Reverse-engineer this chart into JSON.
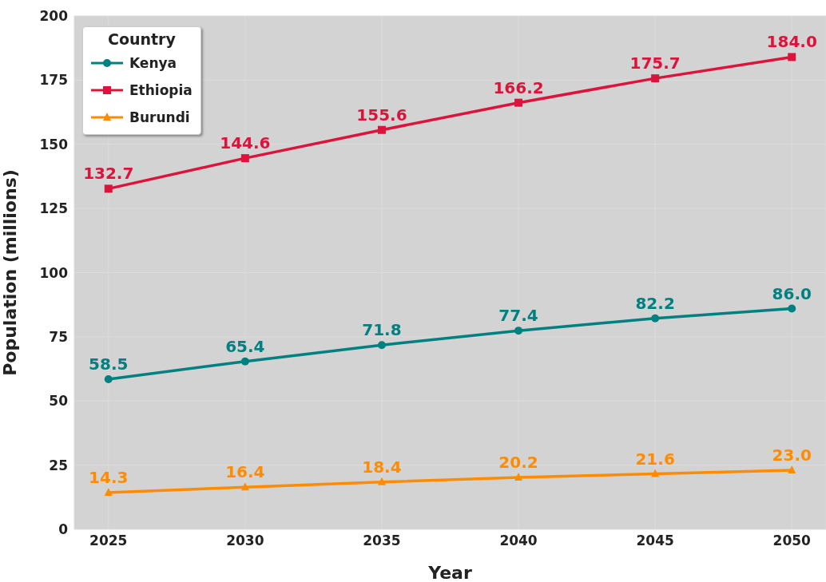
{
  "chart_data": {
    "type": "line",
    "xlabel": "Year",
    "ylabel": "Population (millions)",
    "legend_title": "Country",
    "x": [
      2025,
      2030,
      2035,
      2040,
      2045,
      2050
    ],
    "series": [
      {
        "name": "Kenya",
        "color": "#008080",
        "marker": "circle",
        "values": [
          58.5,
          65.4,
          71.8,
          77.4,
          82.2,
          86.0
        ],
        "value_labels": [
          "58.5",
          "65.4",
          "71.8",
          "77.4",
          "82.2",
          "86.0"
        ]
      },
      {
        "name": "Ethiopia",
        "color": "#dc143c",
        "marker": "square",
        "values": [
          132.7,
          144.6,
          155.6,
          166.2,
          175.7,
          184.0
        ],
        "value_labels": [
          "132.7",
          "144.6",
          "155.6",
          "166.2",
          "175.7",
          "184.0"
        ]
      },
      {
        "name": "Burundi",
        "color": "#ff8c00",
        "marker": "triangle",
        "values": [
          14.3,
          16.4,
          18.4,
          20.2,
          21.6,
          23.0
        ],
        "value_labels": [
          "14.3",
          "16.4",
          "18.4",
          "20.2",
          "21.6",
          "23.0"
        ]
      }
    ],
    "xlim": [
      2023.75,
      2051.25
    ],
    "xticks": [
      2025,
      2030,
      2035,
      2040,
      2045,
      2050
    ],
    "ylim": [
      0,
      200
    ],
    "yticks": [
      0,
      25,
      50,
      75,
      100,
      125,
      150,
      175,
      200
    ],
    "grid": true,
    "legend": "top left"
  }
}
